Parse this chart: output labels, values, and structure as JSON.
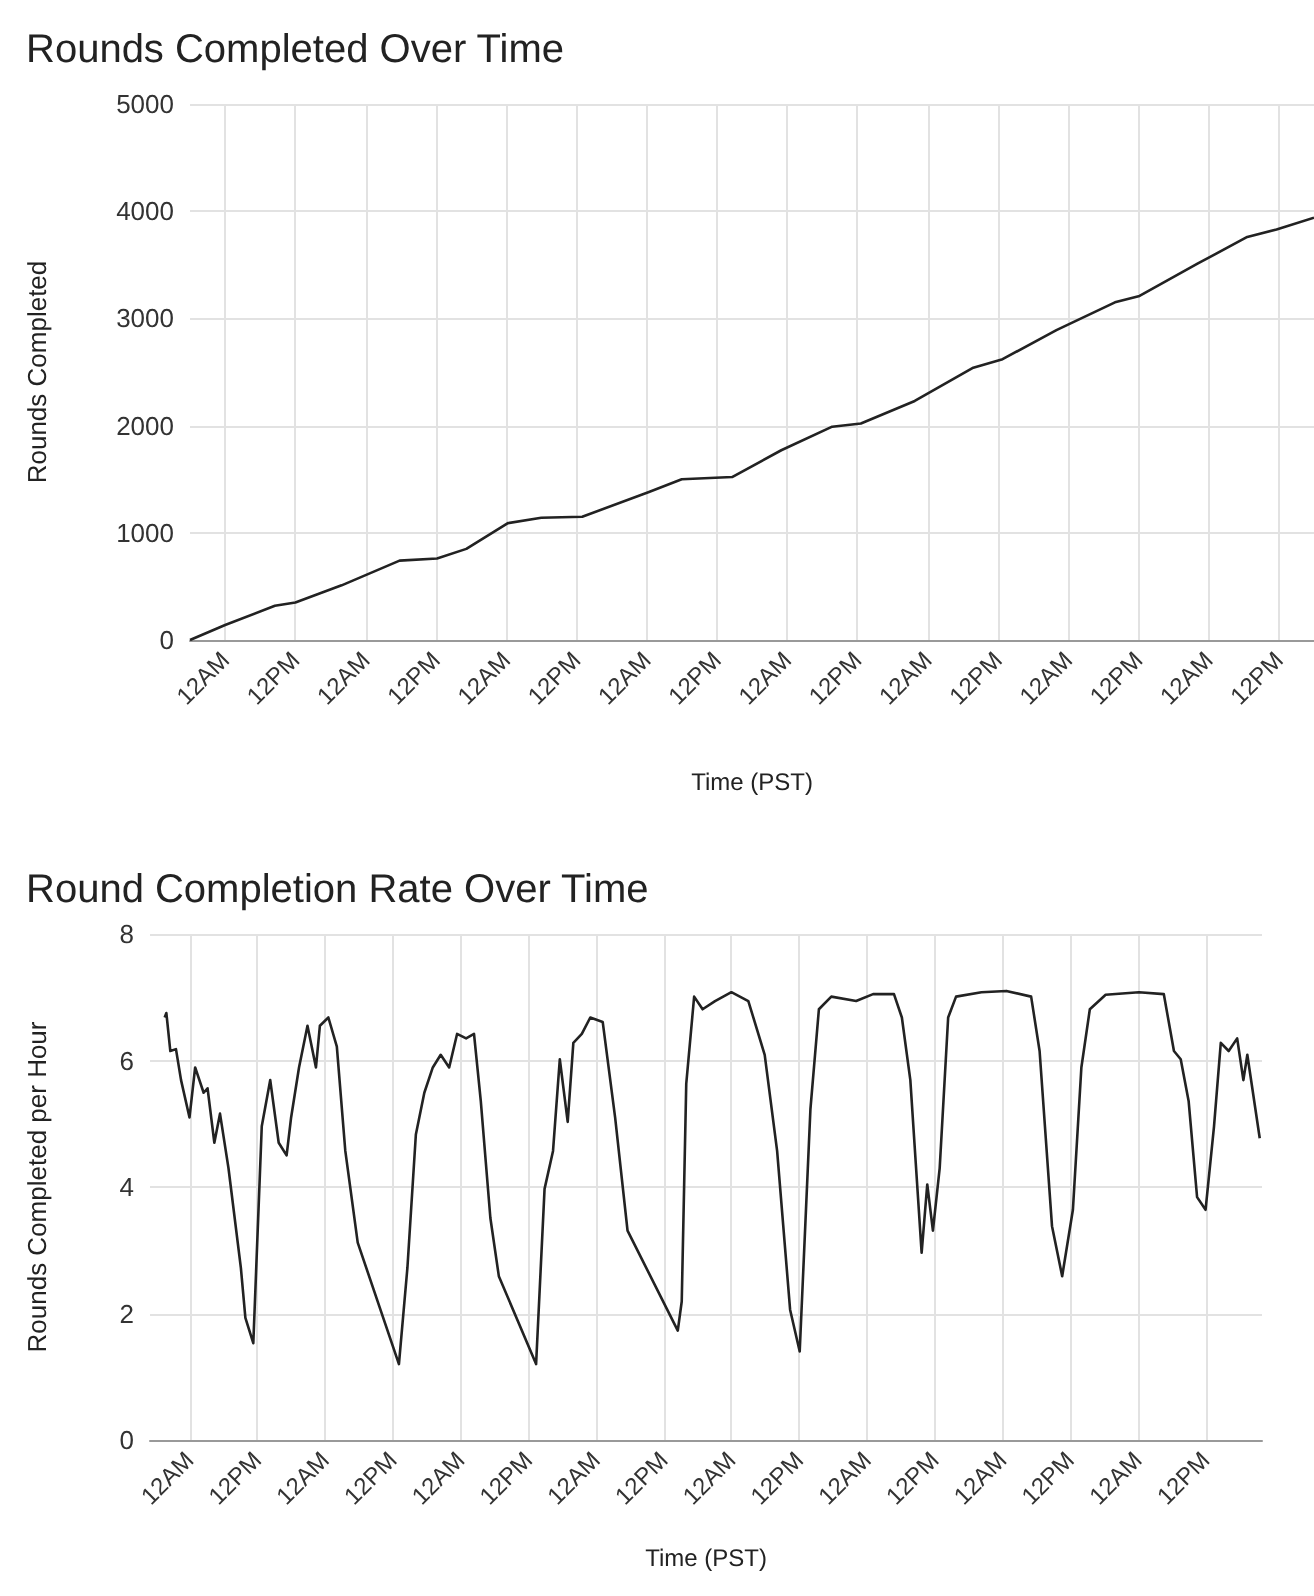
{
  "chart_data": [
    {
      "type": "line",
      "title": "Rounds Completed Over Time",
      "xlabel": "Time (PST)",
      "ylabel": "Rounds Completed",
      "xlim": [
        "--01-01T18:00",
        "--01-09T18:00"
      ],
      "ylim": [
        0,
        5000
      ],
      "yticks": [
        0,
        1000,
        2000,
        3000,
        4000,
        5000
      ],
      "xticks": [
        {
          "value": "--01-02T00:00",
          "label": "12AM"
        },
        {
          "value": "--01-02T12:00",
          "label": "12PM"
        },
        {
          "value": "--01-03T00:00",
          "label": "12AM"
        },
        {
          "value": "--01-03T12:00",
          "label": "12PM"
        },
        {
          "value": "--01-04T00:00",
          "label": "12AM"
        },
        {
          "value": "--01-04T12:00",
          "label": "12PM"
        },
        {
          "value": "--01-05T00:00",
          "label": "12AM"
        },
        {
          "value": "--01-05T12:00",
          "label": "12PM"
        },
        {
          "value": "--01-06T00:00",
          "label": "12AM"
        },
        {
          "value": "--01-06T12:00",
          "label": "12PM"
        },
        {
          "value": "--01-07T00:00",
          "label": "12AM"
        },
        {
          "value": "--01-07T12:00",
          "label": "12PM"
        },
        {
          "value": "--01-08T00:00",
          "label": "12AM"
        },
        {
          "value": "--01-08T12:00",
          "label": "12PM"
        },
        {
          "value": "--01-09T00:00",
          "label": "12AM"
        },
        {
          "value": "--01-09T12:00",
          "label": "12PM"
        }
      ],
      "grid": true,
      "marker": "none",
      "line_style": "solid",
      "series": [
        {
          "color": "#222222",
          "x": [
            "--01-01T18:00",
            "--01-02T00:00",
            "--01-02T08:30",
            "--01-02T12:00",
            "--01-02T19:54",
            "--01-03T05:48",
            "--01-03T12:12",
            "--01-03T17:12",
            "--01-04T00:18",
            "--01-04T06:00",
            "--01-04T13:00",
            "--01-05T00:24",
            "--01-05T06:00",
            "--01-05T14:36",
            "--01-05T23:00",
            "--01-06T07:42",
            "--01-06T12:36",
            "--01-06T21:48",
            "--01-07T07:48",
            "--01-07T12:48",
            "--01-07T22:00",
            "--01-08T08:00",
            "--01-08T12:12",
            "--01-08T22:06",
            "--01-09T06:36",
            "--01-09T11:36",
            "--01-09T18:00"
          ],
          "values": [
            0,
            140,
            320,
            350,
            510,
            740,
            760,
            850,
            1090,
            1140,
            1150,
            1380,
            1500,
            1520,
            1770,
            1990,
            2020,
            2230,
            2540,
            2620,
            2890,
            3150,
            3210,
            3510,
            3760,
            3830,
            3940
          ]
        }
      ]
    },
    {
      "type": "line",
      "title": "Round Completion Rate Over Time",
      "xlabel": "Time (PST)",
      "ylabel": "Rounds Completed per Hour",
      "xlim": [
        "--01-01T17:00",
        "--01-09T22:00"
      ],
      "ylim": [
        0,
        8
      ],
      "yticks": [
        0,
        2,
        4,
        6,
        8
      ],
      "xticks": [
        {
          "value": "--01-02T00:00",
          "label": "12AM"
        },
        {
          "value": "--01-02T12:00",
          "label": "12PM"
        },
        {
          "value": "--01-03T00:00",
          "label": "12AM"
        },
        {
          "value": "--01-03T12:00",
          "label": "12PM"
        },
        {
          "value": "--01-04T00:00",
          "label": "12AM"
        },
        {
          "value": "--01-04T12:00",
          "label": "12PM"
        },
        {
          "value": "--01-05T00:00",
          "label": "12AM"
        },
        {
          "value": "--01-05T12:00",
          "label": "12PM"
        },
        {
          "value": "--01-06T00:00",
          "label": "12AM"
        },
        {
          "value": "--01-06T12:00",
          "label": "12PM"
        },
        {
          "value": "--01-07T00:00",
          "label": "12AM"
        },
        {
          "value": "--01-07T12:00",
          "label": "12PM"
        },
        {
          "value": "--01-08T00:00",
          "label": "12AM"
        },
        {
          "value": "--01-08T12:00",
          "label": "12PM"
        },
        {
          "value": "--01-09T00:00",
          "label": "12AM"
        },
        {
          "value": "--01-09T12:00",
          "label": "12PM"
        }
      ],
      "grid": true,
      "marker": "none",
      "line_style": "solid",
      "series": [
        {
          "color": "#222222",
          "x": [
            "--01-01T19:36",
            "--01-01T19:54",
            "--01-01T20:36",
            "--01-01T21:36",
            "--01-01T22:30",
            "--01-02T00:00",
            "--01-02T01:00",
            "--01-02T02:30",
            "--01-02T03:12",
            "--01-02T04:24",
            "--01-02T05:24",
            "--01-02T06:54",
            "--01-02T09:06",
            "--01-02T09:54",
            "--01-02T11:18",
            "--01-02T12:48",
            "--01-02T14:18",
            "--01-02T15:48",
            "--01-02T17:12",
            "--01-02T18:00",
            "--01-02T19:24",
            "--01-02T20:54",
            "--01-02T22:24",
            "--01-02T23:06",
            "--01-03T00:36",
            "--01-03T02:06",
            "--01-03T03:36",
            "--01-03T05:48",
            "--01-03T13:06",
            "--01-03T14:36",
            "--01-03T16:06",
            "--01-03T17:36",
            "--01-03T19:06",
            "--01-03T20:30",
            "--01-03T22:00",
            "--01-03T23:24",
            "--01-04T01:00",
            "--01-04T02:24",
            "--01-04T03:36",
            "--01-04T05:18",
            "--01-04T06:48",
            "--01-04T13:24",
            "--01-04T14:54",
            "--01-04T16:24",
            "--01-04T17:36",
            "--01-04T19:00",
            "--01-04T20:00",
            "--01-04T21:30",
            "--01-04T23:00",
            "--01-05T01:12",
            "--01-05T03:24",
            "--01-05T05:36",
            "--01-05T14:30",
            "--01-05T15:12",
            "--01-05T16:00",
            "--01-05T17:24",
            "--01-05T18:54",
            "--01-05T21:06",
            "--01-06T00:00",
            "--01-06T03:00",
            "--01-06T05:54",
            "--01-06T08:06",
            "--01-06T10:24",
            "--01-06T12:06",
            "--01-06T14:00",
            "--01-06T15:30",
            "--01-06T17:42",
            "--01-06T22:06",
            "--01-07T01:06",
            "--01-07T04:48",
            "--01-07T06:12",
            "--01-07T07:42",
            "--01-07T09:42",
            "--01-07T10:42",
            "--01-07T11:42",
            "--01-07T12:54",
            "--01-07T14:24",
            "--01-07T15:48",
            "--01-07T20:18",
            "--01-08T00:42",
            "--01-08T05:06",
            "--01-08T06:36",
            "--01-08T08:48",
            "--01-08T10:36",
            "--01-08T12:30",
            "--01-08T14:00",
            "--01-08T15:30",
            "--01-08T18:18",
            "--01-09T00:12",
            "--01-09T04:36",
            "--01-09T06:24",
            "--01-09T07:36",
            "--01-09T09:00",
            "--01-09T10:30",
            "--01-09T12:00",
            "--01-09T13:30",
            "--01-09T14:42",
            "--01-09T16:06",
            "--01-09T17:36",
            "--01-09T18:42",
            "--01-09T19:24",
            "--01-09T21:36"
          ],
          "values": [
            6.68,
            6.75,
            6.15,
            6.18,
            5.69,
            5.1,
            5.89,
            5.49,
            5.56,
            4.7,
            5.16,
            4.3,
            2.72,
            1.93,
            1.53,
            4.96,
            5.69,
            4.7,
            4.5,
            5.1,
            5.89,
            6.55,
            5.89,
            6.55,
            6.68,
            6.22,
            4.57,
            3.12,
            1.2,
            2.72,
            4.83,
            5.49,
            5.89,
            6.09,
            5.89,
            6.42,
            6.35,
            6.42,
            5.36,
            3.51,
            2.59,
            1.2,
            3.97,
            4.57,
            6.02,
            5.03,
            6.28,
            6.42,
            6.68,
            6.61,
            5.1,
            3.31,
            1.73,
            2.19,
            5.63,
            7.01,
            6.81,
            6.94,
            7.08,
            6.94,
            6.09,
            4.57,
            2.06,
            1.4,
            5.23,
            6.81,
            7.01,
            6.94,
            7.05,
            7.05,
            6.68,
            5.69,
            2.96,
            4.04,
            3.31,
            4.3,
            6.68,
            7.01,
            7.08,
            7.1,
            7.01,
            6.15,
            3.38,
            2.59,
            3.64,
            5.89,
            6.81,
            7.04,
            7.08,
            7.05,
            6.15,
            6.02,
            5.36,
            3.84,
            3.64,
            4.96,
            6.28,
            6.15,
            6.35,
            5.69,
            6.09,
            4.77
          ]
        }
      ]
    }
  ]
}
